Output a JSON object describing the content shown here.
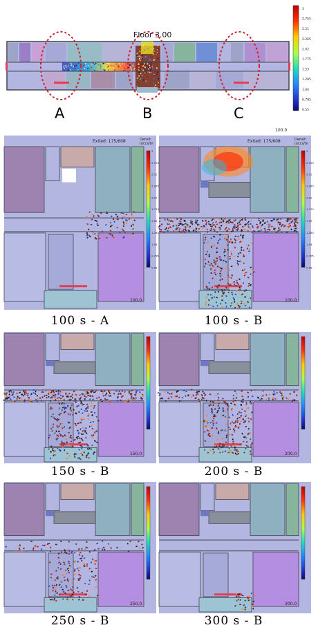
{
  "overview": {
    "floor_label": "Floor 3.00",
    "zone_labels": [
      "A",
      "B",
      "C"
    ],
    "legend_ticks": [
      "3",
      "2.755",
      "2.51",
      "2.265",
      "2.02",
      "1.775",
      "1.53",
      "1.285",
      "1.04",
      "0.795",
      "0.55"
    ],
    "colormap": [
      "#d7191c",
      "#f46d43",
      "#fdae61",
      "#fee08b",
      "#e6f598",
      "#abdda4",
      "#66c2a5",
      "#3288bd",
      "#2b5fd6",
      "#1a1aa6",
      "#0a0a70"
    ]
  },
  "panel_header": {
    "exited": "Exited: 175/608",
    "density_label": "Densit",
    "density_unit": "(occs/m"
  },
  "panels": [
    {
      "caption": "100 s - A",
      "timestamp": "100.0",
      "zone": "A",
      "crowd_level": 0.15
    },
    {
      "caption": "100 s - B",
      "timestamp": "100.0",
      "zone": "B",
      "crowd_level": 1.0
    },
    {
      "caption": "150 s - B",
      "timestamp": "150.0",
      "zone": "B",
      "crowd_level": 0.85
    },
    {
      "caption": "200 s - B",
      "timestamp": "200.0",
      "zone": "B",
      "crowd_level": 0.6
    },
    {
      "caption": "250 s - B",
      "timestamp": "250.0",
      "zone": "B",
      "crowd_level": 0.35
    },
    {
      "caption": "300 s - B",
      "timestamp": "300.0",
      "zone": "B",
      "crowd_level": 0.05
    }
  ],
  "colors": {
    "corridor": "#a9acd8",
    "wall": "#404550",
    "exit": "#e04050",
    "zone_circle": "#d0202a"
  }
}
